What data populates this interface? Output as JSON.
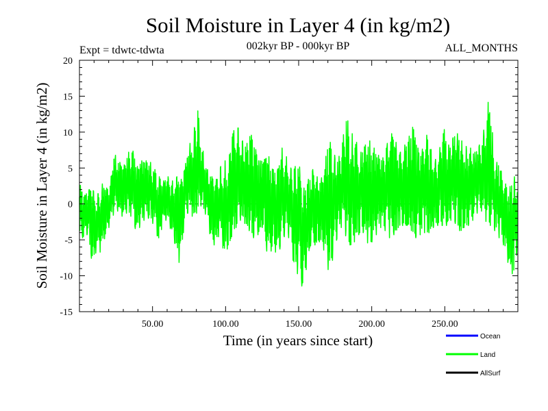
{
  "chart_data": {
    "type": "line",
    "title": "Soil Moisture in Layer 4 (in kg/m2)",
    "subtitle_left": "Expt = tdwtc-tdwta",
    "subtitle_center": "002kyr BP - 000kyr BP",
    "subtitle_right": "ALL_MONTHS",
    "xlabel": "Time (in years since start)",
    "ylabel": "Soil Moisture in Layer 4 (in kg/m2)",
    "xlim": [
      0,
      300
    ],
    "ylim": [
      -15,
      20
    ],
    "x_ticks": [
      50,
      100,
      150,
      200,
      250
    ],
    "x_tick_labels": [
      "50.00",
      "100.00",
      "150.00",
      "200.00",
      "250.00"
    ],
    "y_ticks": [
      -15,
      -10,
      -5,
      0,
      5,
      10,
      15,
      20
    ],
    "y_tick_labels": [
      "-15",
      "-10",
      "-5",
      "0",
      "5",
      "10",
      "15",
      "20"
    ],
    "zero_line": 0,
    "legend_position": "bottom-right",
    "series": [
      {
        "name": "Ocean",
        "color": "#0000ff",
        "values": []
      },
      {
        "name": "Land",
        "color": "#00ff00",
        "x": [
          0,
          3,
          6,
          9,
          12,
          15,
          18,
          21,
          24,
          27,
          30,
          33,
          36,
          39,
          42,
          45,
          48,
          51,
          54,
          57,
          60,
          63,
          66,
          69,
          72,
          75,
          78,
          81,
          84,
          87,
          90,
          93,
          96,
          99,
          102,
          105,
          108,
          111,
          114,
          117,
          120,
          123,
          126,
          129,
          132,
          135,
          138,
          141,
          144,
          147,
          150,
          153,
          156,
          159,
          162,
          165,
          168,
          171,
          174,
          177,
          180,
          183,
          186,
          189,
          192,
          195,
          198,
          201,
          204,
          207,
          210,
          213,
          216,
          219,
          222,
          225,
          228,
          231,
          234,
          237,
          240,
          243,
          246,
          249,
          252,
          255,
          258,
          261,
          264,
          267,
          270,
          273,
          276,
          279,
          282,
          285,
          288,
          291,
          294,
          297,
          300
        ],
        "min": [
          -4,
          -5,
          -4,
          -9,
          -6,
          -7,
          -4,
          -3,
          -1,
          -1,
          -2,
          -1,
          -2,
          -4,
          -3,
          -2,
          -2,
          -3,
          -5,
          -3,
          -2,
          -4,
          -6,
          -9,
          -2,
          -1,
          -2,
          -1,
          0,
          -2,
          -5,
          -6,
          -4,
          -7,
          -6,
          -4,
          -3,
          -2,
          -3,
          -4,
          -5,
          -4,
          -3,
          -8,
          -6,
          -7,
          -6,
          -4,
          -5,
          -9,
          -10,
          -12,
          -8,
          -5,
          -6,
          -5,
          -7,
          -10,
          -7,
          -4,
          -3,
          -5,
          -6,
          -5,
          -4,
          -4,
          -6,
          -5,
          -4,
          -3,
          -4,
          -5,
          -4,
          -3,
          -3,
          -3,
          -4,
          -5,
          -4,
          -4,
          -4,
          -3,
          -3,
          -3,
          -3,
          -2,
          -3,
          -4,
          -3,
          -3,
          -2,
          -1,
          -1,
          -3,
          -3,
          -4,
          -5,
          -6,
          -9,
          -10,
          -6
        ],
        "max": [
          3,
          1,
          2,
          2,
          1,
          3,
          2,
          3,
          7,
          6,
          5,
          7,
          8,
          5,
          6,
          6,
          6,
          5,
          4,
          3,
          4,
          3,
          4,
          3,
          5,
          8,
          10,
          13,
          8,
          5,
          4,
          3,
          5,
          6,
          6,
          10,
          11,
          9,
          8,
          10,
          8,
          6,
          6,
          7,
          5,
          4,
          8,
          7,
          5,
          5,
          6,
          2,
          3,
          5,
          4,
          3,
          6,
          9,
          7,
          6,
          9,
          12,
          10,
          9,
          7,
          8,
          9,
          8,
          7,
          6,
          8,
          10,
          9,
          7,
          8,
          9,
          11,
          8,
          7,
          10,
          8,
          6,
          7,
          11,
          8,
          9,
          10,
          9,
          8,
          8,
          7,
          8,
          9,
          15,
          11,
          6,
          5,
          3,
          2,
          4,
          3
        ]
      },
      {
        "name": "AllSurf",
        "color": "#000000",
        "values": []
      }
    ]
  }
}
